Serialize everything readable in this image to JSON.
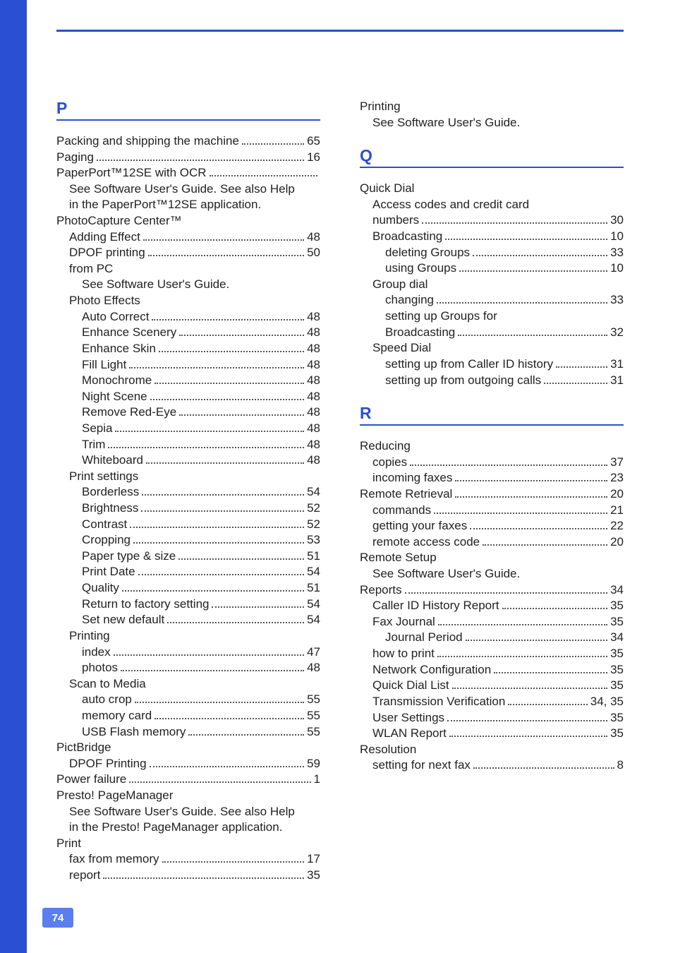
{
  "page_number": "74",
  "colors": {
    "accent": "#2b4fd2",
    "text": "#222222",
    "page_bg": "#ffffff",
    "badge_bg": "#5a7ef0"
  },
  "left": [
    {
      "type": "letter",
      "text": "P"
    },
    {
      "lvl": 1,
      "label": "Packing and shipping the machine",
      "page": "65"
    },
    {
      "lvl": 1,
      "label": "Paging",
      "page": "16"
    },
    {
      "lvl": 1,
      "label": "PaperPort™12SE with OCR",
      "page": ""
    },
    {
      "lvl": 2,
      "label": "See Software User's Guide. See also Help",
      "page": "",
      "nodots": true
    },
    {
      "lvl": 2,
      "label": "in the PaperPort™12SE application.",
      "page": "",
      "nodots": true
    },
    {
      "lvl": 1,
      "label": "PhotoCapture Center™",
      "page": "",
      "nodots": true
    },
    {
      "lvl": 2,
      "label": "Adding Effect",
      "page": "48"
    },
    {
      "lvl": 2,
      "label": "DPOF printing",
      "page": "50"
    },
    {
      "lvl": 2,
      "label": "from PC",
      "page": "",
      "nodots": true
    },
    {
      "lvl": 3,
      "label": "See Software User's Guide.",
      "page": "",
      "nodots": true
    },
    {
      "lvl": 2,
      "label": "Photo Effects",
      "page": "",
      "nodots": true
    },
    {
      "lvl": 3,
      "label": "Auto Correct",
      "page": "48"
    },
    {
      "lvl": 3,
      "label": "Enhance Scenery",
      "page": "48"
    },
    {
      "lvl": 3,
      "label": "Enhance Skin",
      "page": "48"
    },
    {
      "lvl": 3,
      "label": "Fill Light",
      "page": "48"
    },
    {
      "lvl": 3,
      "label": "Monochrome",
      "page": "48"
    },
    {
      "lvl": 3,
      "label": "Night Scene",
      "page": "48"
    },
    {
      "lvl": 3,
      "label": "Remove Red-Eye",
      "page": "48"
    },
    {
      "lvl": 3,
      "label": "Sepia",
      "page": "48"
    },
    {
      "lvl": 3,
      "label": "Trim",
      "page": "48"
    },
    {
      "lvl": 3,
      "label": "Whiteboard",
      "page": "48"
    },
    {
      "lvl": 2,
      "label": "Print settings",
      "page": "",
      "nodots": true
    },
    {
      "lvl": 3,
      "label": "Borderless",
      "page": "54"
    },
    {
      "lvl": 3,
      "label": "Brightness",
      "page": "52"
    },
    {
      "lvl": 3,
      "label": "Contrast",
      "page": "52"
    },
    {
      "lvl": 3,
      "label": "Cropping",
      "page": "53"
    },
    {
      "lvl": 3,
      "label": "Paper type & size",
      "page": "51"
    },
    {
      "lvl": 3,
      "label": "Print Date",
      "page": "54"
    },
    {
      "lvl": 3,
      "label": "Quality",
      "page": "51"
    },
    {
      "lvl": 3,
      "label": "Return to factory setting",
      "page": "54"
    },
    {
      "lvl": 3,
      "label": "Set new default",
      "page": "54"
    },
    {
      "lvl": 2,
      "label": "Printing",
      "page": "",
      "nodots": true
    },
    {
      "lvl": 3,
      "label": "index",
      "page": "47"
    },
    {
      "lvl": 3,
      "label": "photos",
      "page": "48"
    },
    {
      "lvl": 2,
      "label": "Scan to Media",
      "page": "",
      "nodots": true
    },
    {
      "lvl": 3,
      "label": "auto crop",
      "page": "55"
    },
    {
      "lvl": 3,
      "label": "memory card",
      "page": "55"
    },
    {
      "lvl": 3,
      "label": "USB Flash memory",
      "page": "55"
    },
    {
      "lvl": 1,
      "label": "PictBridge",
      "page": "",
      "nodots": true
    },
    {
      "lvl": 2,
      "label": "DPOF Printing",
      "page": "59"
    },
    {
      "lvl": 1,
      "label": "Power failure",
      "page": "1"
    },
    {
      "lvl": 1,
      "label": "Presto! PageManager",
      "page": "",
      "nodots": true
    },
    {
      "lvl": 2,
      "label": "See Software User's Guide. See also Help",
      "page": "",
      "nodots": true
    },
    {
      "lvl": 2,
      "label": "in the Presto! PageManager application.",
      "page": "",
      "nodots": true
    },
    {
      "lvl": 1,
      "label": "Print",
      "page": "",
      "nodots": true
    },
    {
      "lvl": 2,
      "label": "fax from memory",
      "page": "17"
    },
    {
      "lvl": 2,
      "label": "report",
      "page": "35"
    }
  ],
  "right": [
    {
      "lvl": 1,
      "label": "Printing",
      "page": "",
      "nodots": true
    },
    {
      "lvl": 2,
      "label": "See Software User's Guide.",
      "page": "",
      "nodots": true
    },
    {
      "type": "gap"
    },
    {
      "type": "letter",
      "text": "Q"
    },
    {
      "lvl": 1,
      "label": "Quick Dial",
      "page": "",
      "nodots": true
    },
    {
      "lvl": 2,
      "label": "Access codes and credit card",
      "page": "",
      "nodots": true
    },
    {
      "lvl": 2,
      "label": "numbers",
      "page": "30"
    },
    {
      "lvl": 2,
      "label": "Broadcasting",
      "page": "10"
    },
    {
      "lvl": 3,
      "label": "deleting Groups",
      "page": "33"
    },
    {
      "lvl": 3,
      "label": "using Groups",
      "page": "10"
    },
    {
      "lvl": 2,
      "label": "Group dial",
      "page": "",
      "nodots": true
    },
    {
      "lvl": 3,
      "label": "changing",
      "page": "33"
    },
    {
      "lvl": 3,
      "label": "setting up Groups for",
      "page": "",
      "nodots": true
    },
    {
      "lvl": 3,
      "label": "Broadcasting",
      "page": "32"
    },
    {
      "lvl": 2,
      "label": "Speed Dial",
      "page": "",
      "nodots": true
    },
    {
      "lvl": 3,
      "label": "setting up from Caller ID history",
      "page": "31"
    },
    {
      "lvl": 3,
      "label": "setting up from outgoing calls",
      "page": "31"
    },
    {
      "type": "gap"
    },
    {
      "type": "letter",
      "text": "R"
    },
    {
      "lvl": 1,
      "label": "Reducing",
      "page": "",
      "nodots": true
    },
    {
      "lvl": 2,
      "label": "copies",
      "page": "37"
    },
    {
      "lvl": 2,
      "label": "incoming faxes",
      "page": "23"
    },
    {
      "lvl": 1,
      "label": "Remote Retrieval",
      "page": "20"
    },
    {
      "lvl": 2,
      "label": "commands",
      "page": "21"
    },
    {
      "lvl": 2,
      "label": "getting your faxes",
      "page": "22"
    },
    {
      "lvl": 2,
      "label": "remote access code",
      "page": "20"
    },
    {
      "lvl": 1,
      "label": "Remote Setup",
      "page": "",
      "nodots": true
    },
    {
      "lvl": 2,
      "label": "See Software User's Guide.",
      "page": "",
      "nodots": true
    },
    {
      "lvl": 1,
      "label": "Reports",
      "page": "34"
    },
    {
      "lvl": 2,
      "label": "Caller ID History Report",
      "page": "35"
    },
    {
      "lvl": 2,
      "label": "Fax Journal",
      "page": "35"
    },
    {
      "lvl": 3,
      "label": "Journal Period",
      "page": "34"
    },
    {
      "lvl": 2,
      "label": "how to print",
      "page": "35"
    },
    {
      "lvl": 2,
      "label": "Network Configuration",
      "page": "35"
    },
    {
      "lvl": 2,
      "label": "Quick Dial List",
      "page": "35"
    },
    {
      "lvl": 2,
      "label": "Transmission Verification",
      "page": "34, 35"
    },
    {
      "lvl": 2,
      "label": "User Settings",
      "page": "35"
    },
    {
      "lvl": 2,
      "label": "WLAN Report",
      "page": "35"
    },
    {
      "lvl": 1,
      "label": "Resolution",
      "page": "",
      "nodots": true
    },
    {
      "lvl": 2,
      "label": "setting for next fax",
      "page": "8"
    }
  ]
}
